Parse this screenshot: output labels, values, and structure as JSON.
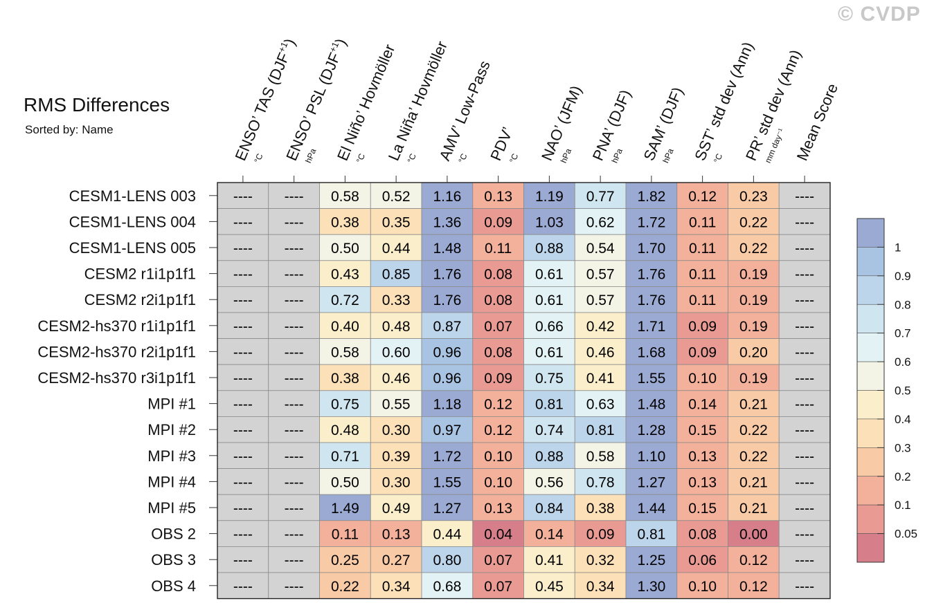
{
  "header": {
    "title": "RMS Differences",
    "subtitle": "Sorted by: Name",
    "watermark": "© CVDP"
  },
  "chart_data": {
    "type": "heatmap",
    "title": "RMS Differences",
    "subtitle": "Sorted by: Name",
    "columns": [
      {
        "label": "ENSO’ TAS (DJF",
        "sup": "+1",
        "tail": ")",
        "unit": "°C"
      },
      {
        "label": "ENSO’ PSL (DJF",
        "sup": "+1",
        "tail": ")",
        "unit": "hPa"
      },
      {
        "label": "El Niño’ Hovmöller",
        "sup": "",
        "tail": "",
        "unit": "°C"
      },
      {
        "label": "La Niña’ Hovmöller",
        "sup": "",
        "tail": "",
        "unit": "°C"
      },
      {
        "label": "AMV’ Low-Pass",
        "sup": "",
        "tail": "",
        "unit": "°C"
      },
      {
        "label": "PDV’",
        "sup": "",
        "tail": "",
        "unit": "°C"
      },
      {
        "label": "NAO’ (JFM)",
        "sup": "",
        "tail": "",
        "unit": "hPa"
      },
      {
        "label": "PNA’ (DJF)",
        "sup": "",
        "tail": "",
        "unit": "hPa"
      },
      {
        "label": "SAM’ (DJF)",
        "sup": "",
        "tail": "",
        "unit": "hPa"
      },
      {
        "label": "SST’ std dev (Ann)",
        "sup": "",
        "tail": "",
        "unit": "°C"
      },
      {
        "label": "PR’ std dev (Ann)",
        "sup": "",
        "tail": "",
        "unit": "mm day⁻¹"
      },
      {
        "label": "Mean Score",
        "sup": "",
        "tail": "",
        "unit": ""
      }
    ],
    "rows": [
      {
        "name": "CESM1-LENS 003",
        "values": [
          null,
          null,
          0.58,
          0.52,
          1.16,
          0.13,
          1.19,
          0.77,
          1.82,
          0.12,
          0.23,
          null
        ]
      },
      {
        "name": "CESM1-LENS 004",
        "values": [
          null,
          null,
          0.38,
          0.35,
          1.36,
          0.09,
          1.03,
          0.62,
          1.72,
          0.11,
          0.22,
          null
        ]
      },
      {
        "name": "CESM1-LENS 005",
        "values": [
          null,
          null,
          0.5,
          0.44,
          1.48,
          0.11,
          0.88,
          0.54,
          1.7,
          0.11,
          0.22,
          null
        ]
      },
      {
        "name": "CESM2 r1i1p1f1",
        "values": [
          null,
          null,
          0.43,
          0.85,
          1.76,
          0.08,
          0.61,
          0.57,
          1.76,
          0.11,
          0.19,
          null
        ]
      },
      {
        "name": "CESM2 r2i1p1f1",
        "values": [
          null,
          null,
          0.72,
          0.33,
          1.76,
          0.08,
          0.61,
          0.57,
          1.76,
          0.11,
          0.19,
          null
        ]
      },
      {
        "name": "CESM2-hs370 r1i1p1f1",
        "values": [
          null,
          null,
          0.4,
          0.48,
          0.87,
          0.07,
          0.66,
          0.42,
          1.71,
          0.09,
          0.19,
          null
        ]
      },
      {
        "name": "CESM2-hs370 r2i1p1f1",
        "values": [
          null,
          null,
          0.58,
          0.6,
          0.96,
          0.08,
          0.61,
          0.46,
          1.68,
          0.09,
          0.2,
          null
        ]
      },
      {
        "name": "CESM2-hs370 r3i1p1f1",
        "values": [
          null,
          null,
          0.38,
          0.46,
          0.96,
          0.09,
          0.75,
          0.41,
          1.55,
          0.1,
          0.19,
          null
        ]
      },
      {
        "name": "MPI #1",
        "values": [
          null,
          null,
          0.75,
          0.55,
          1.18,
          0.12,
          0.81,
          0.63,
          1.48,
          0.14,
          0.21,
          null
        ]
      },
      {
        "name": "MPI #2",
        "values": [
          null,
          null,
          0.48,
          0.3,
          0.97,
          0.12,
          0.74,
          0.81,
          1.28,
          0.15,
          0.22,
          null
        ]
      },
      {
        "name": "MPI #3",
        "values": [
          null,
          null,
          0.71,
          0.39,
          1.72,
          0.1,
          0.88,
          0.58,
          1.1,
          0.13,
          0.22,
          null
        ]
      },
      {
        "name": "MPI #4",
        "values": [
          null,
          null,
          0.5,
          0.3,
          1.55,
          0.1,
          0.56,
          0.78,
          1.27,
          0.13,
          0.21,
          null
        ]
      },
      {
        "name": "MPI #5",
        "values": [
          null,
          null,
          1.49,
          0.49,
          1.27,
          0.13,
          0.84,
          0.38,
          1.44,
          0.15,
          0.21,
          null
        ]
      },
      {
        "name": "OBS 2",
        "values": [
          null,
          null,
          0.11,
          0.13,
          0.44,
          0.04,
          0.14,
          0.09,
          0.81,
          0.08,
          0.0,
          null
        ]
      },
      {
        "name": "OBS 3",
        "values": [
          null,
          null,
          0.25,
          0.27,
          0.8,
          0.07,
          0.41,
          0.32,
          1.25,
          0.06,
          0.12,
          null
        ]
      },
      {
        "name": "OBS 4",
        "values": [
          null,
          null,
          0.22,
          0.34,
          0.68,
          0.07,
          0.45,
          0.34,
          1.3,
          0.1,
          0.12,
          null
        ]
      }
    ],
    "missing_label": "----",
    "missing_color": "#d3d3d3",
    "colorbar": {
      "levels": [
        0.05,
        0.1,
        0.2,
        0.3,
        0.4,
        0.5,
        0.6,
        0.7,
        0.8,
        0.9,
        1
      ],
      "tick_labels": [
        "1",
        "0.9",
        "0.8",
        "0.7",
        "0.6",
        "0.5",
        "0.4",
        "0.3",
        "0.2",
        "0.1",
        "0.05"
      ],
      "colors_top_to_bottom": [
        "#9aaad3",
        "#a9c3e2",
        "#bcd5ea",
        "#cfe5f0",
        "#e3f2f5",
        "#f3f3e6",
        "#fbefcb",
        "#fce0b8",
        "#f9caa6",
        "#f3b09a",
        "#e89a93",
        "#d67f8b"
      ]
    }
  }
}
